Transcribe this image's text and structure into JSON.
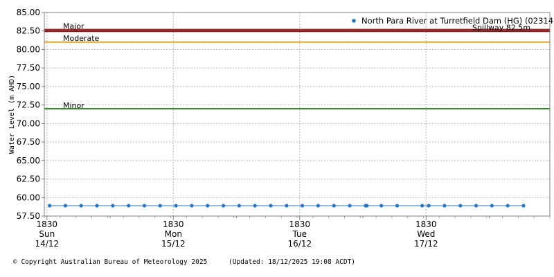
{
  "chart_data": {
    "type": "line",
    "ylabel": "Water Level (m AHD)",
    "ylim": [
      57.5,
      85.0
    ],
    "yticks": [
      "85.00",
      "82.50",
      "80.00",
      "77.50",
      "75.00",
      "72.50",
      "70.00",
      "67.50",
      "65.00",
      "62.50",
      "60.00",
      "57.50"
    ],
    "xaxis": {
      "start": "2025-12-14 18:00",
      "end": "2025-12-18 18:00",
      "ticks": [
        {
          "time": "2025-12-14 18:30",
          "line1": "1830",
          "line2": "Sun",
          "line3": "14/12"
        },
        {
          "time": "2025-12-15 18:30",
          "line1": "1830",
          "line2": "Mon",
          "line3": "15/12"
        },
        {
          "time": "2025-12-16 18:30",
          "line1": "1830",
          "line2": "Tue",
          "line3": "16/12"
        },
        {
          "time": "2025-12-17 18:30",
          "line1": "1830",
          "line2": "Wed",
          "line3": "17/12"
        }
      ]
    },
    "grid": true,
    "legend_position": "top-right",
    "series": [
      {
        "name": "North Para River at Turretfield Dam (HG) (023141)",
        "color": "#1f77d4",
        "x": [
          "2025-12-14 19:00",
          "2025-12-14 22:00",
          "2025-12-15 01:00",
          "2025-12-15 04:00",
          "2025-12-15 07:00",
          "2025-12-15 10:00",
          "2025-12-15 13:00",
          "2025-12-15 16:00",
          "2025-12-15 19:00",
          "2025-12-15 22:00",
          "2025-12-16 01:00",
          "2025-12-16 04:00",
          "2025-12-16 07:00",
          "2025-12-16 10:00",
          "2025-12-16 13:00",
          "2025-12-16 16:00",
          "2025-12-16 19:00",
          "2025-12-16 22:00",
          "2025-12-17 01:00",
          "2025-12-17 04:00",
          "2025-12-17 07:00",
          "2025-12-17 07:15",
          "2025-12-17 10:00",
          "2025-12-17 13:00",
          "2025-12-17 17:45",
          "2025-12-17 19:00",
          "2025-12-17 22:00",
          "2025-12-18 01:00",
          "2025-12-18 04:00",
          "2025-12-18 07:00",
          "2025-12-18 10:00",
          "2025-12-18 13:00"
        ],
        "y": [
          58.9,
          58.9,
          58.9,
          58.9,
          58.9,
          58.9,
          58.9,
          58.9,
          58.9,
          58.9,
          58.9,
          58.9,
          58.9,
          58.9,
          58.9,
          58.9,
          58.9,
          58.9,
          58.9,
          58.9,
          58.9,
          58.9,
          58.9,
          58.9,
          58.9,
          58.9,
          58.9,
          58.9,
          58.9,
          58.9,
          58.9,
          58.9
        ]
      }
    ],
    "thresholds": [
      {
        "label": "Major",
        "value": 82.6,
        "color": "#b22222"
      },
      {
        "label": "Spillway 82.5m",
        "value": 82.5,
        "color": "#b22222"
      },
      {
        "label": "Moderate",
        "value": 81.0,
        "color": "#e8a317"
      },
      {
        "label": "Minor",
        "value": 72.0,
        "color": "#2e8b22"
      }
    ]
  },
  "footer": {
    "copyright": "© Copyright Australian Bureau of Meteorology 2025",
    "updated": "(Updated: 18/12/2025 19:08 ACDT)"
  }
}
